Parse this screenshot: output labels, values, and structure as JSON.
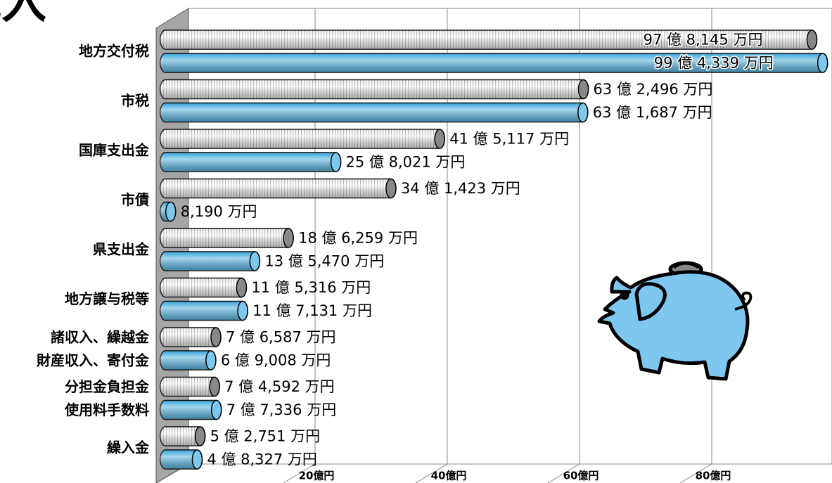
{
  "chart_data": {
    "type": "bar",
    "orientation": "horizontal",
    "title": "歳入",
    "categories": [
      "地方交付税",
      "市税",
      "国庫支出金",
      "市債",
      "県支出金",
      "地方譲与税等",
      [
        "諸収入、繰越金",
        "財産収入、寄付金"
      ],
      [
        "分担金負担金",
        "使用料手数料"
      ],
      "繰入金"
    ],
    "series": [
      {
        "color": "#d9d9d9",
        "values": [
          97.8145,
          63.2496,
          41.5117,
          34.1423,
          18.6259,
          11.5316,
          7.6587,
          7.4592,
          5.2751
        ],
        "value_labels": [
          "97 億 8,145 万円",
          "63 億 2,496 万円",
          "41 億 5,117 万円",
          "34 億 1,423 万円",
          "18 億 6,259 万円",
          "11 億 5,316 万円",
          "7 億 6,587 万円",
          "7 億 4,592 万円",
          "5 億 2,751 万円"
        ]
      },
      {
        "color": "#1e9ad6",
        "values": [
          99.4339,
          63.1687,
          25.8021,
          0.819,
          13.547,
          11.7131,
          6.9008,
          7.7336,
          4.8327
        ],
        "value_labels": [
          "99 億 4,339 万円",
          "63 億 1,687 万円",
          "25 億 8,021 万円",
          "8,190 万円",
          "13 億 5,470 万円",
          "11 億 7,131 万円",
          "6 億 9,008 万円",
          "7 億 7,336 万円",
          "4 億 8,327 万円"
        ]
      }
    ],
    "xlim": [
      0,
      100
    ],
    "xticks": [
      {
        "value": 20,
        "label": "20億円"
      },
      {
        "value": 40,
        "label": "40億円"
      },
      {
        "value": 60,
        "label": "60億円"
      },
      {
        "value": 80,
        "label": "80億円"
      }
    ],
    "grid": true
  }
}
